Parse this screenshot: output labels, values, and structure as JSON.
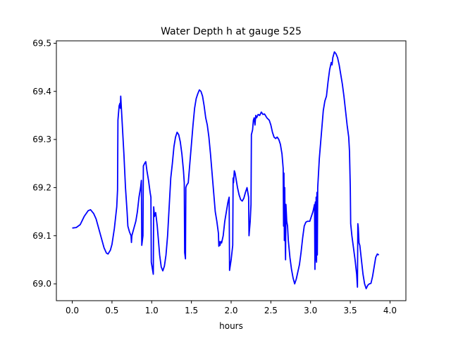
{
  "chart_data": {
    "type": "line",
    "title": "Water Depth h at gauge 525",
    "xlabel": "hours",
    "ylabel": "",
    "xlim": [
      -0.2,
      4.2
    ],
    "ylim": [
      68.965,
      69.505
    ],
    "xticks": [
      0.0,
      0.5,
      1.0,
      1.5,
      2.0,
      2.5,
      3.0,
      3.5,
      4.0
    ],
    "xtick_labels": [
      "0.0",
      "0.5",
      "1.0",
      "1.5",
      "2.0",
      "2.5",
      "3.0",
      "3.5",
      "4.0"
    ],
    "yticks": [
      69.0,
      69.1,
      69.2,
      69.3,
      69.4,
      69.5
    ],
    "ytick_labels": [
      "69.0",
      "69.1",
      "69.2",
      "69.3",
      "69.4",
      "69.5"
    ],
    "grid": false,
    "series": [
      {
        "color": "#0000ff",
        "points": [
          [
            0.0,
            69.116
          ],
          [
            0.05,
            69.117
          ],
          [
            0.1,
            69.123
          ],
          [
            0.15,
            69.14
          ],
          [
            0.2,
            69.152
          ],
          [
            0.23,
            69.154
          ],
          [
            0.27,
            69.146
          ],
          [
            0.3,
            69.135
          ],
          [
            0.35,
            69.105
          ],
          [
            0.4,
            69.075
          ],
          [
            0.43,
            69.064
          ],
          [
            0.45,
            69.062
          ],
          [
            0.48,
            69.07
          ],
          [
            0.5,
            69.082
          ],
          [
            0.53,
            69.115
          ],
          [
            0.56,
            69.16
          ],
          [
            0.57,
            69.195
          ],
          [
            0.575,
            69.34
          ],
          [
            0.59,
            69.37
          ],
          [
            0.6,
            69.375
          ],
          [
            0.605,
            69.365
          ],
          [
            0.61,
            69.39
          ],
          [
            0.62,
            69.36
          ],
          [
            0.63,
            69.33
          ],
          [
            0.65,
            69.27
          ],
          [
            0.67,
            69.2
          ],
          [
            0.69,
            69.15
          ],
          [
            0.7,
            69.12
          ],
          [
            0.72,
            69.108
          ],
          [
            0.74,
            69.1
          ],
          [
            0.745,
            69.086
          ],
          [
            0.75,
            69.1
          ],
          [
            0.77,
            69.112
          ],
          [
            0.8,
            69.13
          ],
          [
            0.82,
            69.15
          ],
          [
            0.84,
            69.18
          ],
          [
            0.86,
            69.2
          ],
          [
            0.87,
            69.215
          ],
          [
            0.875,
            69.08
          ],
          [
            0.89,
            69.1
          ],
          [
            0.895,
            69.245
          ],
          [
            0.91,
            69.25
          ],
          [
            0.925,
            69.254
          ],
          [
            0.94,
            69.235
          ],
          [
            0.96,
            69.215
          ],
          [
            0.98,
            69.19
          ],
          [
            0.99,
            69.18
          ],
          [
            0.995,
            69.045
          ],
          [
            1.005,
            69.035
          ],
          [
            1.02,
            69.02
          ],
          [
            1.025,
            69.16
          ],
          [
            1.035,
            69.14
          ],
          [
            1.05,
            69.148
          ],
          [
            1.07,
            69.12
          ],
          [
            1.08,
            69.1
          ],
          [
            1.1,
            69.06
          ],
          [
            1.12,
            69.035
          ],
          [
            1.14,
            69.027
          ],
          [
            1.16,
            69.037
          ],
          [
            1.18,
            69.06
          ],
          [
            1.2,
            69.1
          ],
          [
            1.22,
            69.16
          ],
          [
            1.24,
            69.22
          ],
          [
            1.26,
            69.25
          ],
          [
            1.28,
            69.285
          ],
          [
            1.3,
            69.305
          ],
          [
            1.32,
            69.315
          ],
          [
            1.34,
            69.31
          ],
          [
            1.36,
            69.295
          ],
          [
            1.38,
            69.27
          ],
          [
            1.4,
            69.235
          ],
          [
            1.41,
            69.21
          ],
          [
            1.415,
            69.065
          ],
          [
            1.425,
            69.052
          ],
          [
            1.43,
            69.2
          ],
          [
            1.44,
            69.205
          ],
          [
            1.46,
            69.21
          ],
          [
            1.48,
            69.25
          ],
          [
            1.5,
            69.29
          ],
          [
            1.52,
            69.33
          ],
          [
            1.54,
            69.365
          ],
          [
            1.56,
            69.385
          ],
          [
            1.58,
            69.395
          ],
          [
            1.6,
            69.403
          ],
          [
            1.62,
            69.4
          ],
          [
            1.64,
            69.39
          ],
          [
            1.66,
            69.37
          ],
          [
            1.68,
            69.345
          ],
          [
            1.7,
            69.33
          ],
          [
            1.72,
            69.305
          ],
          [
            1.74,
            69.27
          ],
          [
            1.76,
            69.23
          ],
          [
            1.78,
            69.19
          ],
          [
            1.8,
            69.15
          ],
          [
            1.82,
            69.13
          ],
          [
            1.84,
            69.105
          ],
          [
            1.845,
            69.078
          ],
          [
            1.85,
            69.088
          ],
          [
            1.86,
            69.08
          ],
          [
            1.87,
            69.088
          ],
          [
            1.88,
            69.085
          ],
          [
            1.9,
            69.1
          ],
          [
            1.92,
            69.13
          ],
          [
            1.94,
            69.15
          ],
          [
            1.96,
            69.17
          ],
          [
            1.975,
            69.18
          ],
          [
            1.98,
            69.028
          ],
          [
            2.0,
            69.05
          ],
          [
            2.02,
            69.08
          ],
          [
            2.025,
            69.22
          ],
          [
            2.03,
            69.21
          ],
          [
            2.04,
            69.235
          ],
          [
            2.05,
            69.23
          ],
          [
            2.06,
            69.22
          ],
          [
            2.08,
            69.2
          ],
          [
            2.1,
            69.185
          ],
          [
            2.12,
            69.175
          ],
          [
            2.14,
            69.172
          ],
          [
            2.16,
            69.178
          ],
          [
            2.18,
            69.19
          ],
          [
            2.2,
            69.2
          ],
          [
            2.22,
            69.18
          ],
          [
            2.225,
            69.1
          ],
          [
            2.24,
            69.13
          ],
          [
            2.25,
            69.165
          ],
          [
            2.255,
            69.31
          ],
          [
            2.27,
            69.32
          ],
          [
            2.28,
            69.34
          ],
          [
            2.29,
            69.345
          ],
          [
            2.3,
            69.33
          ],
          [
            2.31,
            69.35
          ],
          [
            2.32,
            69.345
          ],
          [
            2.34,
            69.352
          ],
          [
            2.36,
            69.35
          ],
          [
            2.38,
            69.357
          ],
          [
            2.4,
            69.352
          ],
          [
            2.42,
            69.353
          ],
          [
            2.45,
            69.345
          ],
          [
            2.48,
            69.34
          ],
          [
            2.5,
            69.33
          ],
          [
            2.52,
            69.315
          ],
          [
            2.54,
            69.305
          ],
          [
            2.56,
            69.302
          ],
          [
            2.58,
            69.305
          ],
          [
            2.6,
            69.3
          ],
          [
            2.62,
            69.29
          ],
          [
            2.64,
            69.27
          ],
          [
            2.655,
            69.24
          ],
          [
            2.66,
            69.12
          ],
          [
            2.665,
            69.23
          ],
          [
            2.67,
            69.09
          ],
          [
            2.675,
            69.2
          ],
          [
            2.68,
            69.1
          ],
          [
            2.685,
            69.05
          ],
          [
            2.69,
            69.165
          ],
          [
            2.7,
            69.13
          ],
          [
            2.71,
            69.12
          ],
          [
            2.72,
            69.09
          ],
          [
            2.74,
            69.055
          ],
          [
            2.76,
            69.03
          ],
          [
            2.78,
            69.012
          ],
          [
            2.8,
            69.0
          ],
          [
            2.82,
            69.01
          ],
          [
            2.84,
            69.025
          ],
          [
            2.86,
            69.04
          ],
          [
            2.88,
            69.065
          ],
          [
            2.9,
            69.095
          ],
          [
            2.92,
            69.12
          ],
          [
            2.94,
            69.128
          ],
          [
            2.96,
            69.13
          ],
          [
            2.99,
            69.13
          ],
          [
            3.01,
            69.14
          ],
          [
            3.03,
            69.15
          ],
          [
            3.05,
            69.165
          ],
          [
            3.055,
            69.03
          ],
          [
            3.06,
            69.17
          ],
          [
            3.065,
            69.05
          ],
          [
            3.07,
            69.18
          ],
          [
            3.075,
            69.045
          ],
          [
            3.08,
            69.19
          ],
          [
            3.085,
            69.06
          ],
          [
            3.09,
            69.2
          ],
          [
            3.1,
            69.23
          ],
          [
            3.11,
            69.26
          ],
          [
            3.12,
            69.28
          ],
          [
            3.14,
            69.32
          ],
          [
            3.16,
            69.36
          ],
          [
            3.18,
            69.38
          ],
          [
            3.2,
            69.39
          ],
          [
            3.22,
            69.42
          ],
          [
            3.24,
            69.445
          ],
          [
            3.26,
            69.46
          ],
          [
            3.27,
            69.455
          ],
          [
            3.28,
            69.47
          ],
          [
            3.3,
            69.482
          ],
          [
            3.32,
            69.478
          ],
          [
            3.34,
            69.47
          ],
          [
            3.36,
            69.455
          ],
          [
            3.38,
            69.435
          ],
          [
            3.4,
            69.415
          ],
          [
            3.42,
            69.39
          ],
          [
            3.44,
            69.36
          ],
          [
            3.46,
            69.33
          ],
          [
            3.48,
            69.305
          ],
          [
            3.49,
            69.275
          ],
          [
            3.5,
            69.2
          ],
          [
            3.505,
            69.125
          ],
          [
            3.52,
            69.1
          ],
          [
            3.54,
            69.075
          ],
          [
            3.56,
            69.05
          ],
          [
            3.58,
            69.02
          ],
          [
            3.59,
            68.993
          ],
          [
            3.595,
            69.125
          ],
          [
            3.6,
            69.118
          ],
          [
            3.61,
            69.085
          ],
          [
            3.62,
            69.08
          ],
          [
            3.64,
            69.05
          ],
          [
            3.66,
            69.02
          ],
          [
            3.68,
            69.0
          ],
          [
            3.7,
            68.99
          ],
          [
            3.72,
            68.997
          ],
          [
            3.74,
            69.0
          ],
          [
            3.76,
            69.001
          ],
          [
            3.78,
            69.015
          ],
          [
            3.8,
            69.035
          ],
          [
            3.82,
            69.055
          ],
          [
            3.84,
            69.062
          ],
          [
            3.86,
            69.06
          ]
        ]
      }
    ]
  }
}
